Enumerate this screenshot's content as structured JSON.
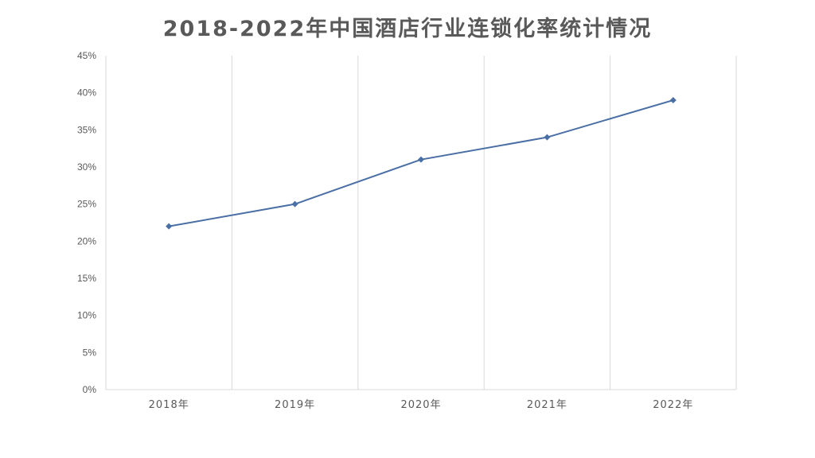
{
  "chart_data": {
    "type": "line",
    "title": "2018-2022年中国酒店行业连锁化率统计情况",
    "xlabel": "",
    "ylabel": "",
    "categories": [
      "2018年",
      "2019年",
      "2020年",
      "2021年",
      "2022年"
    ],
    "series": [
      {
        "values": [
          22,
          25,
          31,
          34,
          39
        ],
        "color": "#4a6fa5"
      }
    ],
    "ylim": [
      0,
      45
    ],
    "y_ticks": [
      "0%",
      "5%",
      "10%",
      "15%",
      "20%",
      "25%",
      "30%",
      "35%",
      "40%",
      "45%"
    ],
    "grid": "vertical category separators",
    "marker": "diamond",
    "legend": "none"
  }
}
